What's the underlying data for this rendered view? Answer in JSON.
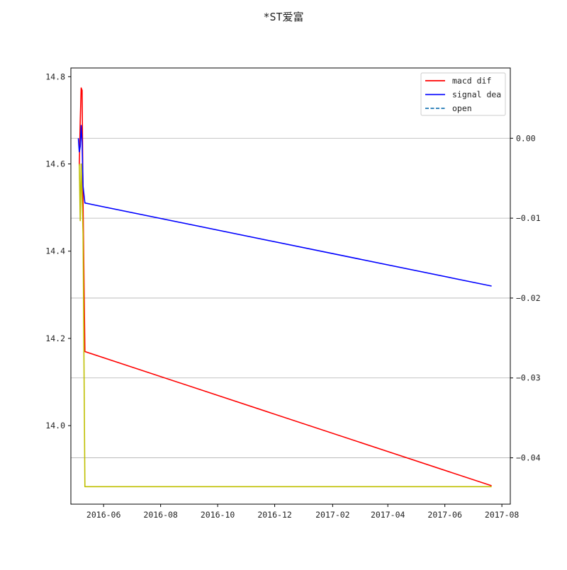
{
  "chart_data": {
    "type": "line",
    "title": "*ST爱富",
    "xlabel": "",
    "ylabel_left": "",
    "ylabel_right": "",
    "x_ticks": [
      "2016-06",
      "2016-08",
      "2016-10",
      "2016-12",
      "2017-02",
      "2017-04",
      "2017-06",
      "2017-08"
    ],
    "x_tick_dates": [
      "2016-06-01",
      "2016-08-01",
      "2016-10-01",
      "2016-12-01",
      "2017-02-01",
      "2017-04-01",
      "2017-06-01",
      "2017-08-01"
    ],
    "xlim": [
      "2016-04-27",
      "2017-08-10"
    ],
    "y_left_ticks": [
      "14.0",
      "14.2",
      "14.4",
      "14.6",
      "14.8"
    ],
    "y_left_tick_values": [
      14.0,
      14.2,
      14.4,
      14.6,
      14.8
    ],
    "ylim_left": [
      13.82,
      14.82
    ],
    "y_right_ticks": [
      "0.00",
      "−0.01",
      "−0.02",
      "−0.03",
      "−0.04"
    ],
    "y_right_tick_values": [
      0.0,
      -0.01,
      -0.02,
      -0.03,
      -0.04
    ],
    "ylim_right": [
      -0.0458,
      0.0088
    ],
    "grid": "right-axis horizontal",
    "legend_position": "top-right",
    "legend": [
      {
        "label": "macd dif",
        "color": "#ff0000",
        "style": "solid"
      },
      {
        "label": "signal dea",
        "color": "#0000ff",
        "style": "solid"
      },
      {
        "label": "open",
        "color": "#1f77b4",
        "style": "dashed"
      }
    ],
    "series": [
      {
        "name": "macd dif",
        "axis": "right",
        "color": "#ff0000",
        "points": [
          [
            "2016-05-06",
            -0.0034
          ],
          [
            "2016-05-07",
            0.0021
          ],
          [
            "2016-05-08",
            0.0063
          ],
          [
            "2016-05-09",
            0.006
          ],
          [
            "2016-05-10",
            -0.008
          ],
          [
            "2016-05-12",
            -0.0267
          ],
          [
            "2017-07-21",
            -0.0435
          ]
        ]
      },
      {
        "name": "signal dea",
        "axis": "right",
        "color": "#0000ff",
        "points": [
          [
            "2016-05-05",
            0.0
          ],
          [
            "2016-05-06",
            -0.0017
          ],
          [
            "2016-05-07",
            -0.001
          ],
          [
            "2016-05-08",
            0.0016
          ],
          [
            "2016-05-09",
            -0.0005
          ],
          [
            "2016-05-10",
            -0.006
          ],
          [
            "2016-05-12",
            -0.0081
          ],
          [
            "2017-07-21",
            -0.0185
          ]
        ]
      },
      {
        "name": "",
        "axis": "left",
        "color": "#bfbf00",
        "points": [
          [
            "2016-05-06",
            14.6
          ],
          [
            "2016-05-07",
            14.47
          ],
          [
            "2016-05-08",
            14.6
          ],
          [
            "2016-05-10",
            14.44
          ],
          [
            "2016-05-12",
            13.86
          ],
          [
            "2017-07-21",
            13.86
          ]
        ]
      }
    ]
  }
}
